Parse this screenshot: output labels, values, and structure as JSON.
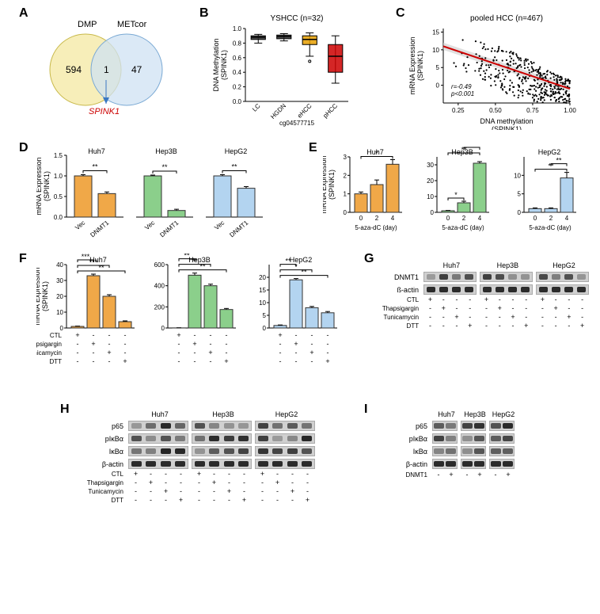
{
  "panelA": {
    "label": "A",
    "venn": {
      "left_label": "DMP",
      "right_label": "METcor",
      "left_n": 594,
      "overlap_n": 1,
      "right_n": 47,
      "left_color": "#f5eaa7",
      "right_color": "#cfe2f3",
      "callout": "SPINK1",
      "callout_color": "#cc0000"
    }
  },
  "panelB": {
    "label": "B",
    "title": "YSHCC (n=32)",
    "ylabel": "DNA Methylation\n(SPINK1)",
    "ylim": [
      0,
      1.0
    ],
    "yticks": [
      0,
      0.2,
      0.4,
      0.6,
      0.8,
      1.0
    ],
    "categories": [
      "LC",
      "HGDN",
      "eHCC",
      "pHCC"
    ],
    "boxes": [
      {
        "q1": 0.85,
        "med": 0.88,
        "q3": 0.9,
        "lo": 0.8,
        "hi": 0.92,
        "color": "#333"
      },
      {
        "q1": 0.86,
        "med": 0.89,
        "q3": 0.91,
        "lo": 0.83,
        "hi": 0.93,
        "color": "#333"
      },
      {
        "q1": 0.78,
        "med": 0.85,
        "q3": 0.9,
        "lo": 0.62,
        "hi": 0.94,
        "color": "#e69f00",
        "out": [
          0.55
        ]
      },
      {
        "q1": 0.4,
        "med": 0.62,
        "q3": 0.78,
        "lo": 0.25,
        "hi": 0.9,
        "color": "#cc0000"
      }
    ],
    "probe": "cg04577715"
  },
  "panelC": {
    "label": "C",
    "title": "pooled HCC (n=467)",
    "xlabel": "DNA methylation\n(SPINK1)",
    "ylabel": "mRNA Expression\n(SPINK1)",
    "xlim": [
      0.15,
      1.0
    ],
    "xticks": [
      0.25,
      0.5,
      0.75,
      1.0
    ],
    "ylim": [
      -5,
      16
    ],
    "yticks": [
      0,
      5,
      10,
      15
    ],
    "fit_line": {
      "x1": 0.15,
      "y1": 11,
      "x2": 1.0,
      "y2": -1,
      "color": "#cc0000",
      "width": 2
    },
    "ci_color": "#cccccc",
    "stats": "r=-0.49\np<0.001"
  },
  "panelD": {
    "label": "D",
    "ylabel": "mRNA Expression\n(SPINK1)",
    "ylim": [
      0,
      1.5
    ],
    "yticks": [
      0,
      0.5,
      1.0,
      1.5
    ],
    "groups": [
      {
        "name": "Huh7",
        "color": "#f0a848",
        "bars": [
          {
            "x": "Vec",
            "v": 1.0,
            "e": 0.03
          },
          {
            "x": "DNMT1",
            "v": 0.57,
            "e": 0.04
          }
        ],
        "sig": "**"
      },
      {
        "name": "Hep3B",
        "color": "#8bcf8b",
        "bars": [
          {
            "x": "Vec",
            "v": 1.0,
            "e": 0.02
          },
          {
            "x": "DNMT1",
            "v": 0.16,
            "e": 0.03
          }
        ],
        "sig": "**"
      },
      {
        "name": "HepG2",
        "color": "#b3d4f0",
        "bars": [
          {
            "x": "Vec",
            "v": 1.0,
            "e": 0.03
          },
          {
            "x": "DNMT1",
            "v": 0.7,
            "e": 0.04
          }
        ],
        "sig": "**"
      }
    ]
  },
  "panelE": {
    "label": "E",
    "ylabel": "mRNA Expression\n(SPINK1)",
    "xlabel": "5-aza-dC (day)",
    "subs": [
      {
        "name": "Huh7",
        "color": "#f0a848",
        "ylim": [
          0,
          3
        ],
        "yticks": [
          0,
          1,
          2,
          3
        ],
        "xs": [
          "0",
          "2",
          "4"
        ],
        "vals": [
          1.0,
          1.5,
          2.6
        ],
        "errs": [
          0.1,
          0.25,
          0.25
        ],
        "sig": [
          [
            "0",
            "4",
            "*"
          ]
        ]
      },
      {
        "name": "Hep3B",
        "color": "#8bcf8b",
        "ylim": [
          0,
          35
        ],
        "yticks": [
          0,
          10,
          20,
          30
        ],
        "xs": [
          "0",
          "2",
          "4"
        ],
        "vals": [
          1.0,
          6,
          31
        ],
        "errs": [
          0.2,
          1,
          1
        ],
        "sig": [
          [
            "0",
            "2",
            "*"
          ],
          [
            "0",
            "4",
            "**"
          ],
          [
            "2",
            "4",
            "**"
          ]
        ]
      },
      {
        "name": "HepG2",
        "color": "#b3d4f0",
        "ylim": [
          0,
          15
        ],
        "yticks": [
          0,
          5,
          10
        ],
        "xs": [
          "0",
          "2",
          "4"
        ],
        "vals": [
          1.0,
          1.0,
          9.3
        ],
        "errs": [
          0.2,
          0.2,
          1.5
        ],
        "sig": [
          [
            "0",
            "4",
            "**"
          ],
          [
            "2",
            "4",
            "**"
          ]
        ]
      }
    ]
  },
  "panelF": {
    "label": "F",
    "ylabel": "mRNA Expression\n(SPINK1)",
    "treatments": [
      "CTL",
      "Thapsigargin",
      "Tunicamycin",
      "DTT"
    ],
    "subs": [
      {
        "name": "Huh7",
        "color": "#f0a848",
        "ylim": [
          0,
          40
        ],
        "yticks": [
          0,
          10,
          20,
          30,
          40
        ],
        "vals": [
          1,
          33,
          20,
          4
        ],
        "errs": [
          0.2,
          1,
          1,
          0.5
        ],
        "sig": [
          "***",
          "***",
          "**"
        ]
      },
      {
        "name": "Hep3B",
        "color": "#8bcf8b",
        "ylim": [
          0,
          600
        ],
        "yticks": [
          0,
          200,
          400,
          600
        ],
        "vals": [
          1,
          500,
          400,
          175
        ],
        "errs": [
          1,
          20,
          15,
          10
        ],
        "sig": [
          "**",
          "**",
          "**"
        ]
      },
      {
        "name": "HepG2",
        "color": "#b3d4f0",
        "ylim": [
          0,
          25
        ],
        "yticks": [
          0,
          5,
          10,
          15,
          20
        ],
        "vals": [
          1,
          19,
          8,
          6
        ],
        "errs": [
          0.2,
          0.5,
          0.5,
          0.5
        ],
        "sig": [
          "**",
          "*",
          "**"
        ]
      }
    ]
  },
  "panelG": {
    "label": "G",
    "cells": [
      "Huh7",
      "Hep3B",
      "HepG2"
    ],
    "rows": [
      "DNMT1",
      "ß-actin"
    ],
    "treatments": [
      "CTL",
      "Thapsigargin",
      "Tunicamycin",
      "DTT"
    ]
  },
  "panelH": {
    "label": "H",
    "cells": [
      "Huh7",
      "Hep3B",
      "HepG2"
    ],
    "rows": [
      "p65",
      "pIκBα",
      "IκBα",
      "β-actin"
    ],
    "treatments": [
      "CTL",
      "Thapsigargin",
      "Tunicamycin",
      "DTT"
    ]
  },
  "panelI": {
    "label": "I",
    "cells": [
      "Huh7",
      "Hep3B",
      "HepG2"
    ],
    "rows": [
      "p65",
      "pIκBα",
      "IκBα",
      "β-actin"
    ],
    "condition_label": "DNMT1",
    "conditions": [
      "-",
      "+",
      "-",
      "+",
      "-",
      "+"
    ]
  }
}
